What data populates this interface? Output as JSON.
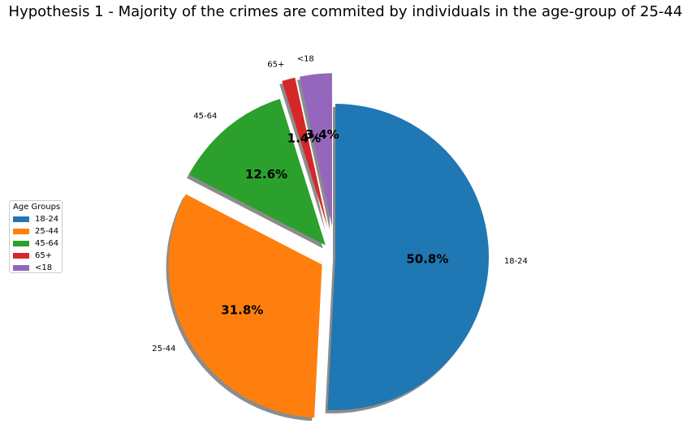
{
  "chart_data": {
    "type": "pie",
    "title": "Hypothesis 1 - Majority of the crimes are commited by individuals in the age-group of 25-44",
    "slices": [
      {
        "label": "18-24",
        "value": 50.8,
        "pct_label": "50.8%",
        "color": "#1f77b4",
        "explode": 0.0
      },
      {
        "label": "25-44",
        "value": 31.8,
        "pct_label": "31.8%",
        "color": "#ff7f0e",
        "explode": 0.1
      },
      {
        "label": "45-64",
        "value": 12.6,
        "pct_label": "12.6%",
        "color": "#2ca02c",
        "explode": 0.1
      },
      {
        "label": "65+",
        "value": 1.4,
        "pct_label": "1.4%",
        "color": "#d62728",
        "explode": 0.2
      },
      {
        "label": "<18",
        "value": 3.4,
        "pct_label": "3.4%",
        "color": "#9467bd",
        "explode": 0.2
      }
    ],
    "start_angle": 90,
    "counterclock": false,
    "shadow": true,
    "legend": {
      "title": "Age Groups",
      "placement": "center-left"
    }
  }
}
